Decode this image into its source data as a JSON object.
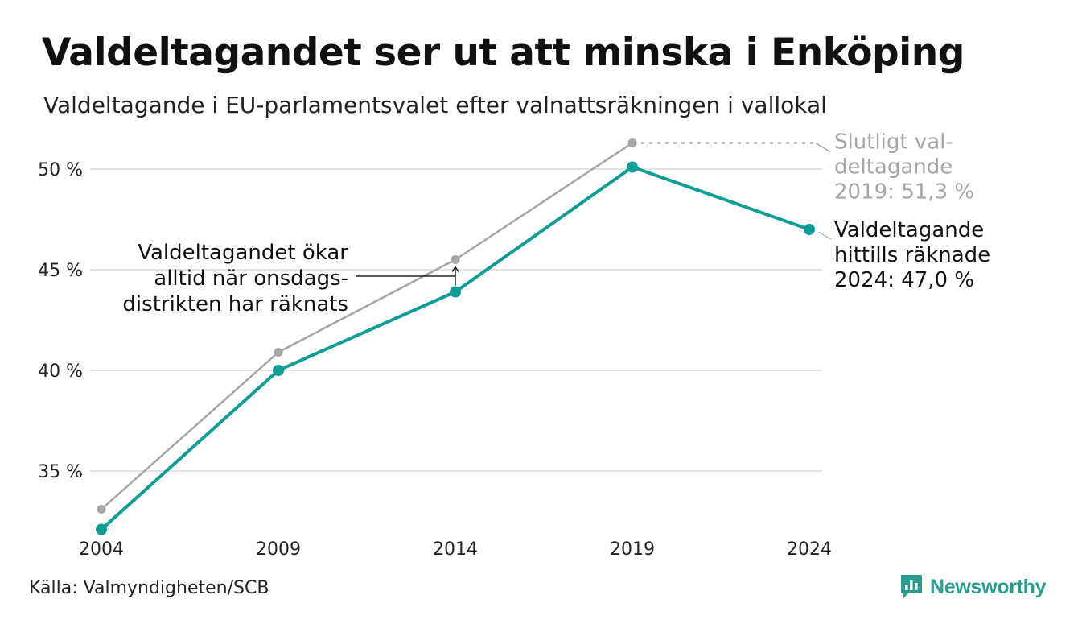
{
  "title": "Valdeltagandet ser ut att minska i Enköping",
  "subtitle": "Valdeltagande i EU-parlamentsvalet efter valnattsräkningen i vallokal",
  "source": "Källa: Valmyndigheten/SCB",
  "brand": {
    "name": "Newsworthy",
    "icon": "newsworthy-logo-icon"
  },
  "colors": {
    "counted": "#0f9e94",
    "final": "#a6a6a6",
    "grid": "#e3e3e3",
    "text": "#111111"
  },
  "chart_data": {
    "type": "line",
    "categories": [
      "2004",
      "2009",
      "2014",
      "2019",
      "2024"
    ],
    "ylim": [
      32,
      52
    ],
    "yticks": [
      35,
      40,
      45,
      50
    ],
    "ytick_labels": [
      "35 %",
      "40 %",
      "45 %",
      "50 %"
    ],
    "grid": true,
    "series": [
      {
        "key": "final",
        "values": [
          33.1,
          40.9,
          45.5,
          51.3,
          null
        ]
      },
      {
        "key": "counted",
        "values": [
          32.1,
          40.0,
          43.9,
          50.1,
          47.0
        ]
      }
    ],
    "annotations": {
      "final_label": [
        "Slutligt val-",
        "deltagande",
        "2019: 51,3 %"
      ],
      "counted_label": [
        "Valdeltagande",
        "hittills räknade",
        "2024: 47,0 %"
      ],
      "note": [
        "Valdeltagandet ökar",
        "alltid när onsdags-",
        "distrikten har räknats"
      ]
    }
  }
}
